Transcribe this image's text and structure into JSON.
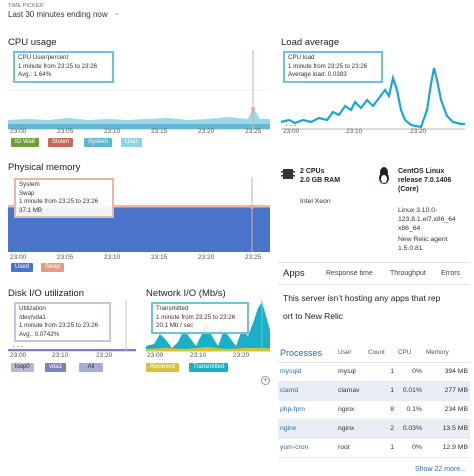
{
  "header": {
    "time_picker_label": "TIME PICKER:",
    "time_picker_value": "Last 30 minutes ending now",
    "chevron_icon": "chevron-down-icon"
  },
  "cpu": {
    "title": "CPU usage",
    "ticks": [
      "23:00",
      "23:05",
      "23:10",
      "23:15",
      "23:20",
      "23:25"
    ],
    "tooltip": [
      "CPU User/percent",
      "1 minute from 23:25 to 23:26",
      "Avg.: 1.64%"
    ],
    "legend": [
      "IO Wait",
      "Stolen",
      "System",
      "User"
    ],
    "legend_colors": [
      "#6f9f3c",
      "#c9695c",
      "#5fb5d3",
      "#8fd3e6"
    ]
  },
  "load": {
    "title": "Load average",
    "ticks": [
      "23:00",
      "23:10",
      "23:20"
    ],
    "tooltip": [
      "CPU load",
      "1 minute from 23:25 to 23:26",
      "Average load: 0.0383"
    ],
    "color": "#1aa6d9"
  },
  "memory": {
    "title": "Physical memory",
    "ticks": [
      "23:00",
      "23:05",
      "23:10",
      "23:15",
      "23:20",
      "23:25"
    ],
    "tooltip": [
      "System",
      "Swap",
      "1 minute from 23:25 to 23:26",
      "37.1 MB"
    ],
    "legend": [
      "Used",
      "Swap"
    ],
    "legend_colors": [
      "#4a74c9",
      "#e39a86"
    ]
  },
  "disk": {
    "title": "Disk I/O utilization",
    "ticks": [
      "23:00",
      "23:10",
      "23:20"
    ],
    "tooltip": [
      "Utilization",
      "/dev/vda1",
      "1 minute from 23:25 to 23:26",
      "Avg.: 0.0742%"
    ],
    "legend": [
      "loop0",
      "vda1",
      "All"
    ],
    "legend_colors": [
      "#b7b7d8",
      "#7d7fbf",
      "#a9acd6"
    ]
  },
  "network": {
    "title": "Network I/O (Mb/s)",
    "ticks": [
      "23:00",
      "23:10",
      "23:20"
    ],
    "tooltip": [
      "Transmitted",
      "1 minute from 23:25 to 23:26",
      "20.1 Mb / sec"
    ],
    "legend": [
      "Received",
      "Transmitted"
    ],
    "legend_colors": [
      "#d6c23c",
      "#1ab0c7"
    ]
  },
  "server": {
    "cpus": "2 CPUs",
    "ram": "2.0 GB RAM",
    "cpu_model": "Intel Xeon",
    "os_name": "CentOS Linux",
    "os_release": "release 7.0.1406",
    "os_core": "(Core)",
    "kernel_1": "Linux 3.10.0-",
    "kernel_2": "123.8.1.el7.x86_64",
    "kernel_3": "x86_64",
    "agent_1": "New Relic agent",
    "agent_2": "1.5.0.81"
  },
  "apps": {
    "title": "Apps",
    "tabs": [
      "Response time",
      "Throughput",
      "Errors"
    ],
    "message_1": "This server isn’t hosting any apps that rep",
    "message_2": "ort to New Relic"
  },
  "processes": {
    "title": "Processes",
    "columns": [
      "User",
      "Count",
      "CPU",
      "Memory"
    ],
    "rows": [
      {
        "name": "mysqld",
        "user": "mysql",
        "count": "1",
        "cpu": "0%",
        "memory": "394 MB"
      },
      {
        "name": "clamd",
        "user": "clamav",
        "count": "1",
        "cpu": "0.01%",
        "memory": "277 MB"
      },
      {
        "name": "php-fpm",
        "user": "nginx",
        "count": "8",
        "cpu": "0.1%",
        "memory": "234 MB"
      },
      {
        "name": "nginx",
        "user": "nginx",
        "count": "2",
        "cpu": "0.03%",
        "memory": "13.5 MB"
      },
      {
        "name": "yum-cron",
        "user": "root",
        "count": "1",
        "cpu": "0%",
        "memory": "12.9 MB"
      }
    ],
    "show_more": "Show 22 more..."
  }
}
